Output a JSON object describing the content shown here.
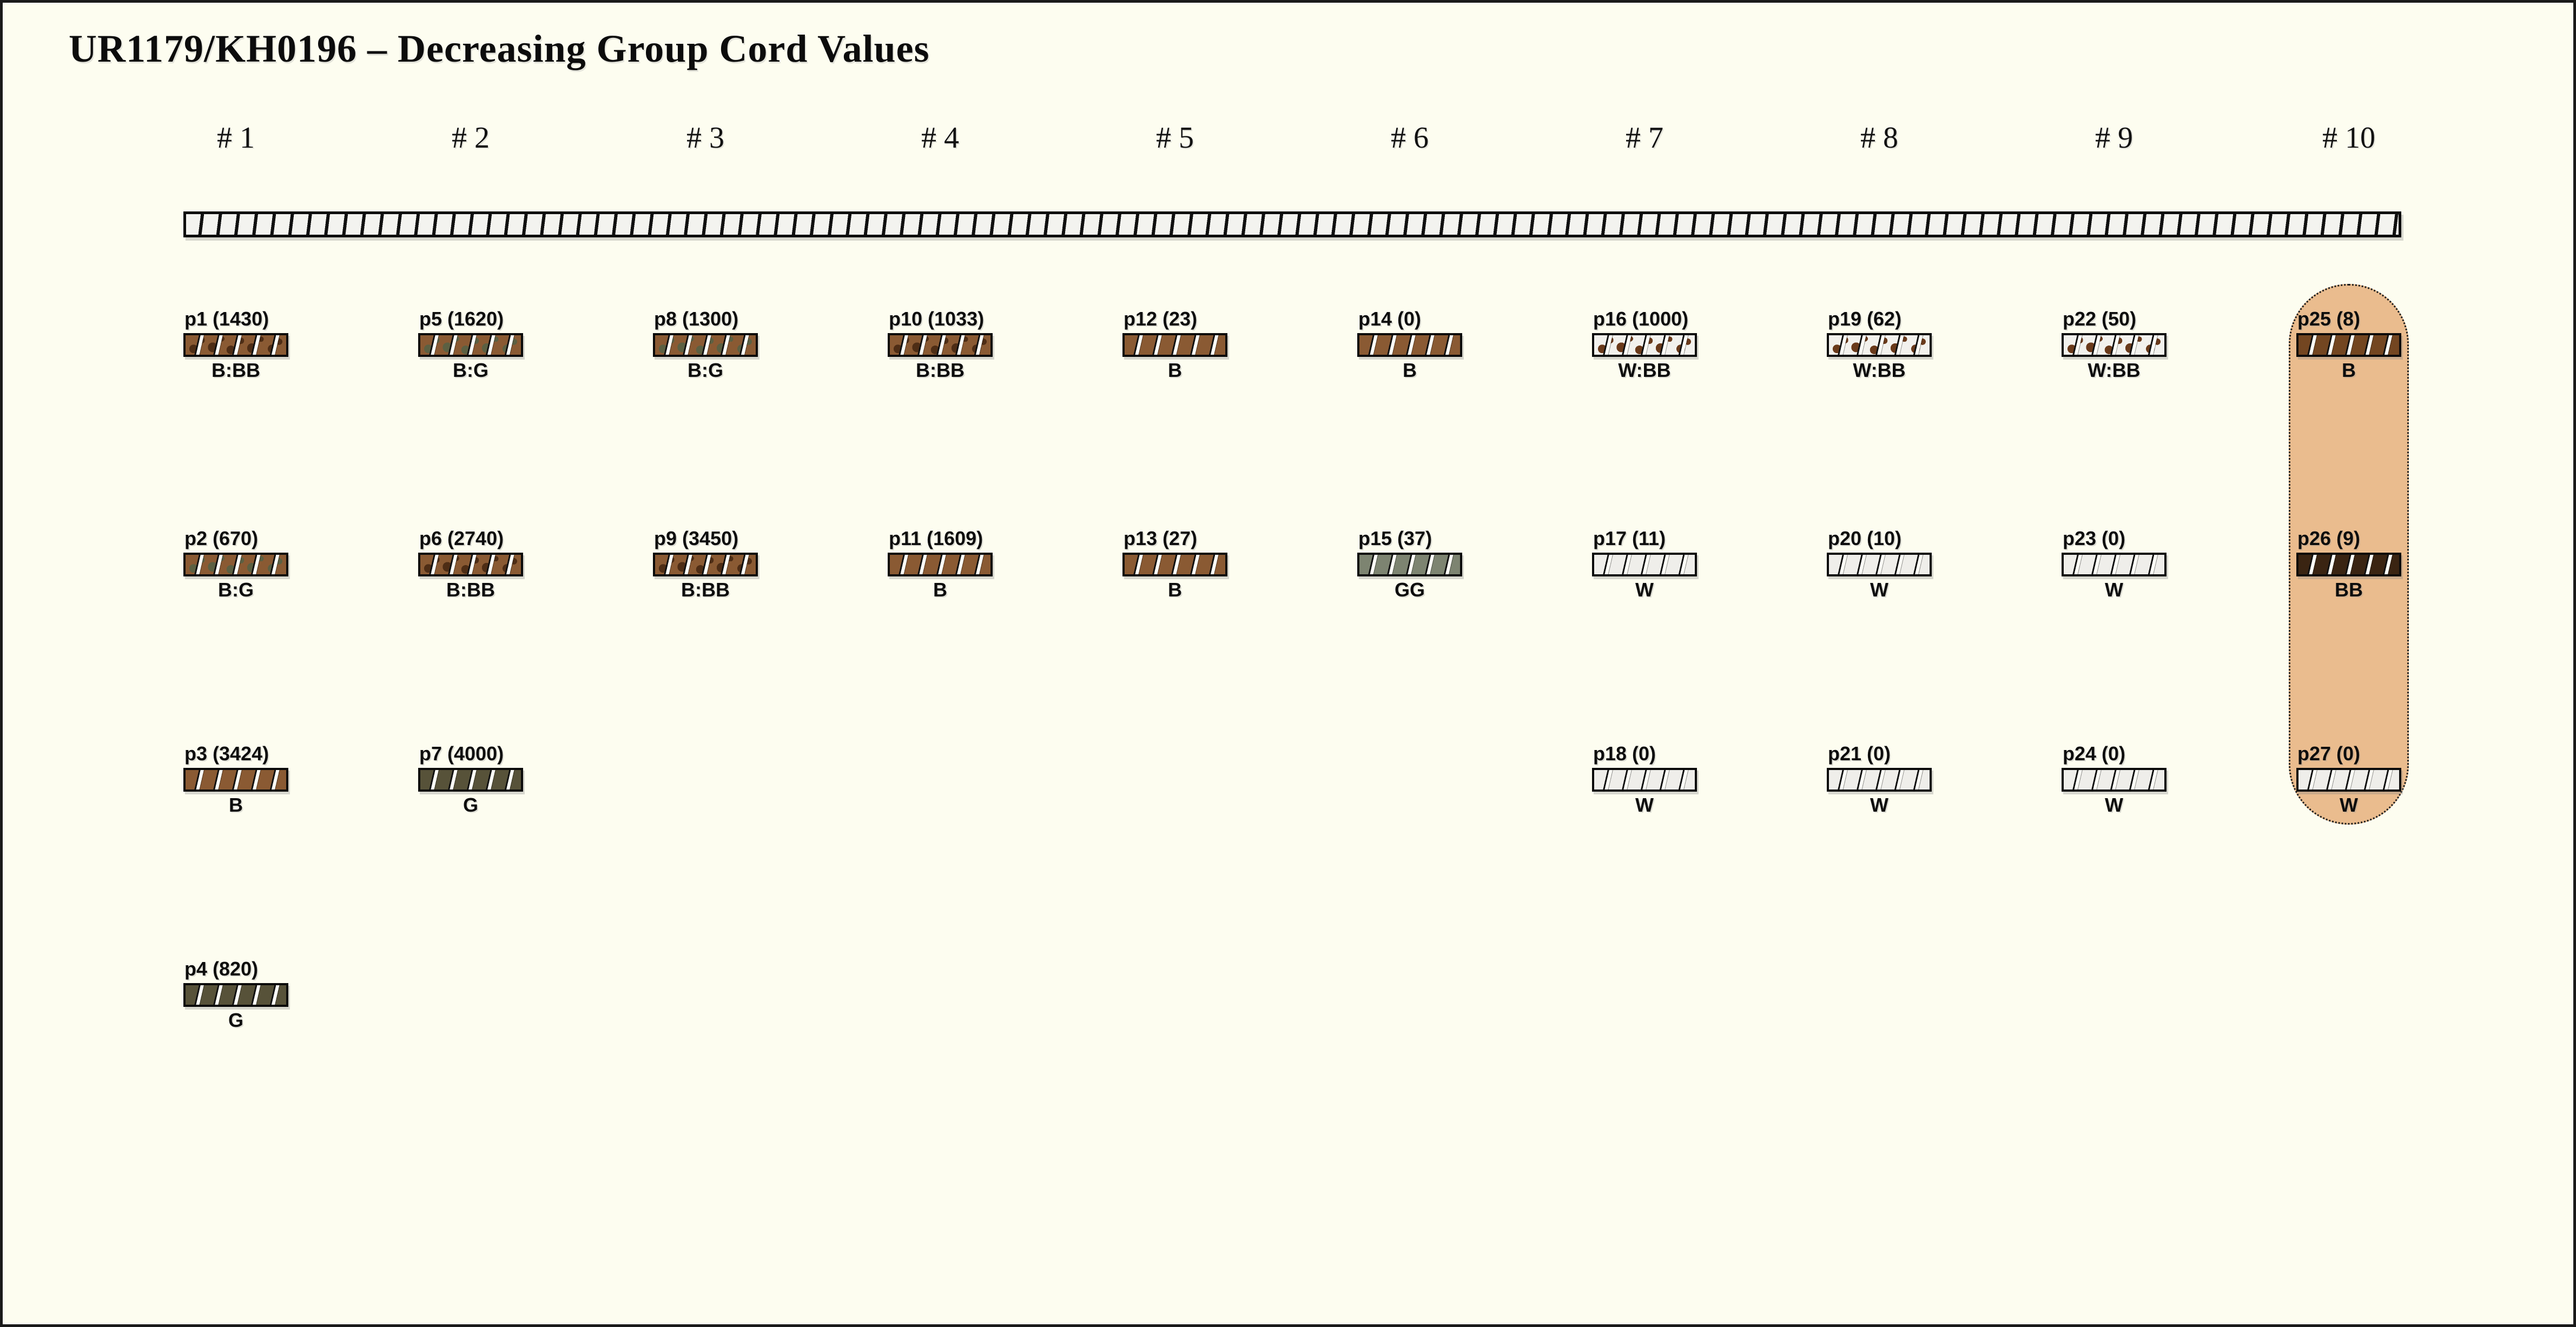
{
  "title": "UR1179/KH0196 – Decreasing Group Cord Values",
  "colors": {
    "background": "#fdfdf0",
    "frame_border": "#1a1a1a",
    "primary_cord_fill": "#f3f3ef",
    "highlight_capsule": "#eabc8e",
    "brown_B": "#8a5a33",
    "dark_brown_BB": "#3a2412",
    "olive_G": "#575239",
    "sage_GG": "#7d8471",
    "white_W": "#efeeea"
  },
  "columns": [
    {
      "label": "# 1"
    },
    {
      "label": "# 2"
    },
    {
      "label": "# 3"
    },
    {
      "label": "# 4"
    },
    {
      "label": "# 5"
    },
    {
      "label": "# 6"
    },
    {
      "label": "# 7"
    },
    {
      "label": "# 8"
    },
    {
      "label": "# 9"
    },
    {
      "label": "# 10",
      "highlighted": true
    }
  ],
  "pendants": [
    {
      "id": "p1",
      "label": "p1 (1430)",
      "value": 1430,
      "color_code": "B:BB",
      "column": 1,
      "row": 1,
      "base": "#8a5a33",
      "speckle": "#4e2d15"
    },
    {
      "id": "p2",
      "label": "p2 (670)",
      "value": 670,
      "color_code": "B:G",
      "column": 1,
      "row": 2,
      "base": "#8a5a33",
      "speckle": "#5c6042"
    },
    {
      "id": "p3",
      "label": "p3 (3424)",
      "value": 3424,
      "color_code": "B",
      "column": 1,
      "row": 3,
      "base": "#8a5a33",
      "speckle": null
    },
    {
      "id": "p4",
      "label": "p4 (820)",
      "value": 820,
      "color_code": "G",
      "column": 1,
      "row": 4,
      "base": "#575239",
      "speckle": null
    },
    {
      "id": "p5",
      "label": "p5 (1620)",
      "value": 1620,
      "color_code": "B:G",
      "column": 2,
      "row": 1,
      "base": "#8a5a33",
      "speckle": "#5c6042"
    },
    {
      "id": "p6",
      "label": "p6 (2740)",
      "value": 2740,
      "color_code": "B:BB",
      "column": 2,
      "row": 2,
      "base": "#8a5a33",
      "speckle": "#4e2d15"
    },
    {
      "id": "p7",
      "label": "p7 (4000)",
      "value": 4000,
      "color_code": "G",
      "column": 2,
      "row": 3,
      "base": "#575239",
      "speckle": null
    },
    {
      "id": "p8",
      "label": "p8 (1300)",
      "value": 1300,
      "color_code": "B:G",
      "column": 3,
      "row": 1,
      "base": "#8a5a33",
      "speckle": "#5c6042"
    },
    {
      "id": "p9",
      "label": "p9 (3450)",
      "value": 3450,
      "color_code": "B:BB",
      "column": 3,
      "row": 2,
      "base": "#8a5a33",
      "speckle": "#4e2d15"
    },
    {
      "id": "p10",
      "label": "p10 (1033)",
      "value": 1033,
      "color_code": "B:BB",
      "column": 4,
      "row": 1,
      "base": "#8a5a33",
      "speckle": "#4e2d15"
    },
    {
      "id": "p11",
      "label": "p11 (1609)",
      "value": 1609,
      "color_code": "B",
      "column": 4,
      "row": 2,
      "base": "#8a5a33",
      "speckle": null
    },
    {
      "id": "p12",
      "label": "p12 (23)",
      "value": 23,
      "color_code": "B",
      "column": 5,
      "row": 1,
      "base": "#8a5a33",
      "speckle": null
    },
    {
      "id": "p13",
      "label": "p13 (27)",
      "value": 27,
      "color_code": "B",
      "column": 5,
      "row": 2,
      "base": "#8a5a33",
      "speckle": null
    },
    {
      "id": "p14",
      "label": "p14 (0)",
      "value": 0,
      "color_code": "B",
      "column": 6,
      "row": 1,
      "base": "#8a5a33",
      "speckle": null
    },
    {
      "id": "p15",
      "label": "p15 (37)",
      "value": 37,
      "color_code": "GG",
      "column": 6,
      "row": 2,
      "base": "#7d8471",
      "speckle": null
    },
    {
      "id": "p16",
      "label": "p16 (1000)",
      "value": 1000,
      "color_code": "W:BB",
      "column": 7,
      "row": 1,
      "base": "#f2f1ed",
      "speckle": "#6a3a1b"
    },
    {
      "id": "p17",
      "label": "p17 (11)",
      "value": 11,
      "color_code": "W",
      "column": 7,
      "row": 2,
      "base": "#efeeea",
      "speckle": null
    },
    {
      "id": "p18",
      "label": "p18 (0)",
      "value": 0,
      "color_code": "W",
      "column": 7,
      "row": 3,
      "base": "#efeeea",
      "speckle": null
    },
    {
      "id": "p19",
      "label": "p19 (62)",
      "value": 62,
      "color_code": "W:BB",
      "column": 8,
      "row": 1,
      "base": "#f2f1ed",
      "speckle": "#6a3a1b"
    },
    {
      "id": "p20",
      "label": "p20 (10)",
      "value": 10,
      "color_code": "W",
      "column": 8,
      "row": 2,
      "base": "#efeeea",
      "speckle": null
    },
    {
      "id": "p21",
      "label": "p21 (0)",
      "value": 0,
      "color_code": "W",
      "column": 8,
      "row": 3,
      "base": "#efeeea",
      "speckle": null
    },
    {
      "id": "p22",
      "label": "p22 (50)",
      "value": 50,
      "color_code": "W:BB",
      "column": 9,
      "row": 1,
      "base": "#f2f1ed",
      "speckle": "#6a3a1b"
    },
    {
      "id": "p23",
      "label": "p23 (0)",
      "value": 0,
      "color_code": "W",
      "column": 9,
      "row": 2,
      "base": "#efeeea",
      "speckle": null
    },
    {
      "id": "p24",
      "label": "p24 (0)",
      "value": 0,
      "color_code": "W",
      "column": 9,
      "row": 3,
      "base": "#efeeea",
      "speckle": null
    },
    {
      "id": "p25",
      "label": "p25 (8)",
      "value": 8,
      "color_code": "B",
      "column": 10,
      "row": 1,
      "base": "#734621",
      "speckle": null
    },
    {
      "id": "p26",
      "label": "p26 (9)",
      "value": 9,
      "color_code": "BB",
      "column": 10,
      "row": 2,
      "base": "#3a2412",
      "speckle": null
    },
    {
      "id": "p27",
      "label": "p27 (0)",
      "value": 0,
      "color_code": "W",
      "column": 10,
      "row": 3,
      "base": "#efeeea",
      "speckle": null
    }
  ]
}
